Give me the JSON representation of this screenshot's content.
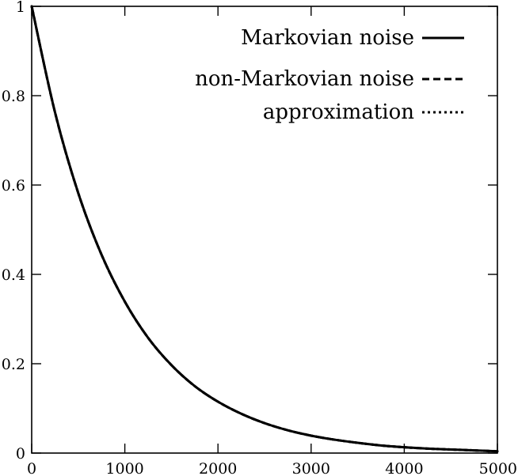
{
  "chart_data": {
    "type": "line",
    "title": "",
    "xlabel": "",
    "ylabel": "",
    "xlim": [
      0,
      5000
    ],
    "ylim": [
      0,
      1
    ],
    "xticks": [
      0,
      1000,
      2000,
      3000,
      4000,
      5000
    ],
    "xtick_labels": [
      "0",
      "1000",
      "2000",
      "3000",
      "4000",
      "5000"
    ],
    "yticks": [
      0,
      0.2,
      0.4,
      0.6,
      0.8,
      1
    ],
    "ytick_labels": [
      "0",
      "0.2",
      "0.4",
      "0.6",
      "0.8",
      "1"
    ],
    "grid": false,
    "legend_position": "top-right",
    "series": [
      {
        "name": "Markovian noise",
        "style": "solid",
        "color": "#000000",
        "x": [
          0,
          250,
          500,
          750,
          1000,
          1250,
          1500,
          1750,
          2000,
          2250,
          2500,
          2750,
          3000,
          3250,
          3500,
          3750,
          4000,
          4250,
          4500,
          4750,
          5000
        ],
        "y": [
          1.0,
          0.763,
          0.582,
          0.444,
          0.339,
          0.258,
          0.197,
          0.15,
          0.115,
          0.088,
          0.067,
          0.051,
          0.039,
          0.03,
          0.023,
          0.017,
          0.013,
          0.01,
          0.008,
          0.006,
          0.004
        ]
      },
      {
        "name": "non-Markovian noise",
        "style": "dashed",
        "color": "#000000",
        "x": [
          0,
          250,
          500,
          750,
          1000,
          1250,
          1500,
          1750,
          2000,
          2250,
          2500,
          2750,
          3000,
          3250,
          3500,
          3750,
          4000,
          4250,
          4500,
          4750,
          5000
        ],
        "y": [
          1.0,
          0.763,
          0.582,
          0.444,
          0.339,
          0.258,
          0.197,
          0.15,
          0.115,
          0.088,
          0.067,
          0.051,
          0.039,
          0.03,
          0.023,
          0.017,
          0.013,
          0.01,
          0.008,
          0.006,
          0.004
        ]
      },
      {
        "name": "approximation",
        "style": "dotted",
        "color": "#000000",
        "x": [
          0,
          250,
          500,
          750,
          1000,
          1250,
          1500,
          1750,
          2000,
          2250,
          2500,
          2750,
          3000,
          3250,
          3500,
          3750,
          4000,
          4250,
          4500,
          4750,
          5000
        ],
        "y": [
          1.0,
          0.763,
          0.582,
          0.444,
          0.339,
          0.258,
          0.197,
          0.15,
          0.115,
          0.088,
          0.067,
          0.051,
          0.039,
          0.03,
          0.023,
          0.017,
          0.013,
          0.01,
          0.008,
          0.006,
          0.004
        ]
      }
    ]
  }
}
